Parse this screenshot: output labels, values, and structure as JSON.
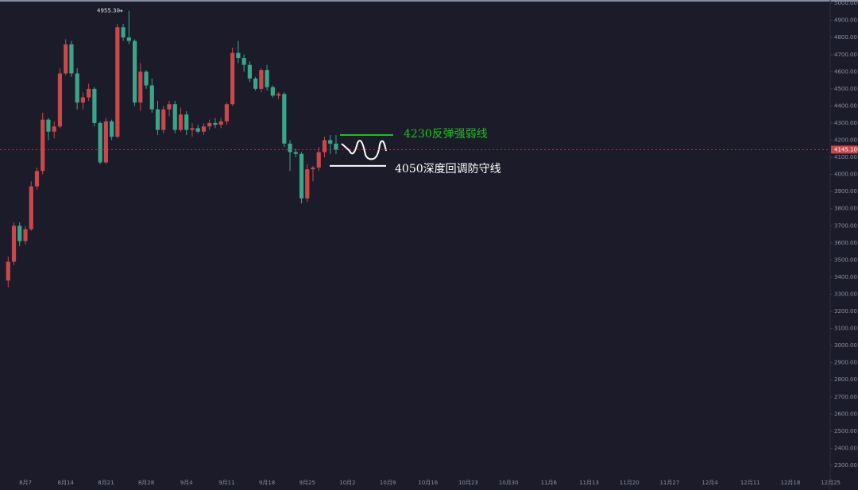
{
  "chart_data": {
    "type": "candlestick",
    "x": [
      "8月4",
      "8月5",
      "8月6",
      "8月7",
      "8月8",
      "8月9",
      "8月10",
      "8月11",
      "8月12",
      "8月13",
      "8月14",
      "8月15",
      "8月16",
      "8月17",
      "8月18",
      "8月19",
      "8月20",
      "8月21",
      "8月22",
      "8月23",
      "8月24",
      "8月25",
      "8月26",
      "8月27",
      "8月28",
      "8月29",
      "8月30",
      "8月31",
      "9月1",
      "9月2",
      "9月3",
      "9月4",
      "9月5",
      "9月6",
      "9月7",
      "9月8",
      "9月9",
      "9月10",
      "9月11",
      "9月12",
      "9月13",
      "9月14",
      "9月15",
      "9月16",
      "9月17",
      "9月18",
      "9月19",
      "9月20",
      "9月21",
      "9月22",
      "9月23",
      "9月24",
      "9月25",
      "9月26",
      "9月27",
      "9月28",
      "9月29",
      "9月30"
    ],
    "open": [
      3380,
      3490,
      3700,
      3610,
      3680,
      3930,
      4020,
      4320,
      4250,
      4280,
      4590,
      4760,
      4590,
      4420,
      4450,
      4500,
      4300,
      4070,
      4310,
      4220,
      4860,
      4800,
      4780,
      4420,
      4600,
      4520,
      4380,
      4260,
      4380,
      4410,
      4260,
      4350,
      4260,
      4270,
      4250,
      4280,
      4300,
      4290,
      4310,
      4410,
      4710,
      4680,
      4640,
      4560,
      4500,
      4610,
      4510,
      4460,
      4470,
      4180,
      4130,
      4120,
      3860,
      4030,
      4040,
      4130,
      4200,
      4180
    ],
    "high": [
      3520,
      3720,
      3720,
      3700,
      3960,
      4040,
      4360,
      4330,
      4310,
      4620,
      4790,
      4780,
      4620,
      4480,
      4530,
      4510,
      4310,
      4330,
      4320,
      4880,
      4880,
      4955.3,
      4790,
      4650,
      4610,
      4560,
      4430,
      4400,
      4430,
      4430,
      4390,
      4370,
      4300,
      4290,
      4300,
      4320,
      4330,
      4330,
      4420,
      4740,
      4780,
      4700,
      4660,
      4570,
      4620,
      4640,
      4520,
      4480,
      4480,
      4200,
      4150,
      4130,
      4060,
      4050,
      4160,
      4220,
      4230,
      4230
    ],
    "low": [
      3340,
      3470,
      3580,
      3590,
      3670,
      3910,
      4000,
      4200,
      4210,
      4270,
      4580,
      4570,
      4380,
      4380,
      4430,
      4280,
      4060,
      4060,
      4200,
      4210,
      4780,
      4760,
      4400,
      4370,
      4500,
      4360,
      4230,
      4240,
      4340,
      4240,
      4250,
      4230,
      4220,
      4240,
      4230,
      4260,
      4270,
      4270,
      4290,
      4400,
      4650,
      4600,
      4540,
      4490,
      4480,
      4490,
      4450,
      4440,
      4160,
      4020,
      4100,
      3830,
      3840,
      3960,
      4020,
      4100,
      4120,
      4120
    ],
    "close": [
      3490,
      3700,
      3610,
      3680,
      3930,
      4020,
      4320,
      4250,
      4280,
      4590,
      4760,
      4590,
      4420,
      4450,
      4500,
      4300,
      4070,
      4310,
      4220,
      4860,
      4800,
      4780,
      4420,
      4600,
      4520,
      4380,
      4260,
      4380,
      4410,
      4260,
      4350,
      4260,
      4270,
      4250,
      4280,
      4300,
      4290,
      4310,
      4410,
      4710,
      4680,
      4640,
      4560,
      4500,
      4610,
      4510,
      4460,
      4470,
      4180,
      4130,
      4120,
      3860,
      4030,
      4040,
      4130,
      4200,
      4180,
      4145.1
    ],
    "up_color": "#c8484c",
    "down_color": "#3ba58a",
    "ylim": [
      2235,
      5019
    ],
    "yticks": [
      {
        "value": 2300,
        "label": "2300.00"
      },
      {
        "value": 2400,
        "label": "2400.00"
      },
      {
        "value": 2500,
        "label": "2500.00"
      },
      {
        "value": 2600,
        "label": "2600.00"
      },
      {
        "value": 2700,
        "label": "2700.00"
      },
      {
        "value": 2800,
        "label": "2800.00"
      },
      {
        "value": 2900,
        "label": "2900.00"
      },
      {
        "value": 3000,
        "label": "3000.00"
      },
      {
        "value": 3100,
        "label": "3100.00"
      },
      {
        "value": 3200,
        "label": "3200.00"
      },
      {
        "value": 3300,
        "label": "3300.00"
      },
      {
        "value": 3400,
        "label": "3400.00"
      },
      {
        "value": 3500,
        "label": "3500.00"
      },
      {
        "value": 3600,
        "label": "3600.00"
      },
      {
        "value": 3700,
        "label": "3700.00"
      },
      {
        "value": 3800,
        "label": "3800.00"
      },
      {
        "value": 3900,
        "label": "3900.00"
      },
      {
        "value": 4000,
        "label": "4000.00"
      },
      {
        "value": 4100,
        "label": "4100.00"
      },
      {
        "value": 4200,
        "label": "4200.00"
      },
      {
        "value": 4300,
        "label": "4300.00"
      },
      {
        "value": 4400,
        "label": "4400.00"
      },
      {
        "value": 4500,
        "label": "4500.00"
      },
      {
        "value": 4600,
        "label": "4600.00"
      },
      {
        "value": 4700,
        "label": "4700.00"
      },
      {
        "value": 4800,
        "label": "4800.00"
      },
      {
        "value": 4900,
        "label": "4900.00"
      },
      {
        "value": 5000,
        "label": "5000.00"
      }
    ],
    "xticks": [
      "8月7",
      "8月14",
      "8月21",
      "8月28",
      "9月4",
      "9月11",
      "9月18",
      "9月25",
      "10月2",
      "10月9",
      "10月16",
      "10月23",
      "10月30",
      "11月6",
      "11月13",
      "11月20",
      "11月27",
      "12月4",
      "12月11",
      "12月18",
      "12月25"
    ],
    "last_price": {
      "value": 4145.1,
      "label": "4145.10"
    },
    "high_label": {
      "value": 4955.3,
      "label": "4955.30"
    },
    "annotations": [
      {
        "text": "4230反弹强弱线",
        "value": 4230,
        "color": "#1fc01f"
      },
      {
        "text": "4050深度回调防守线",
        "value": 4050,
        "color": "#ffffff"
      }
    ]
  }
}
